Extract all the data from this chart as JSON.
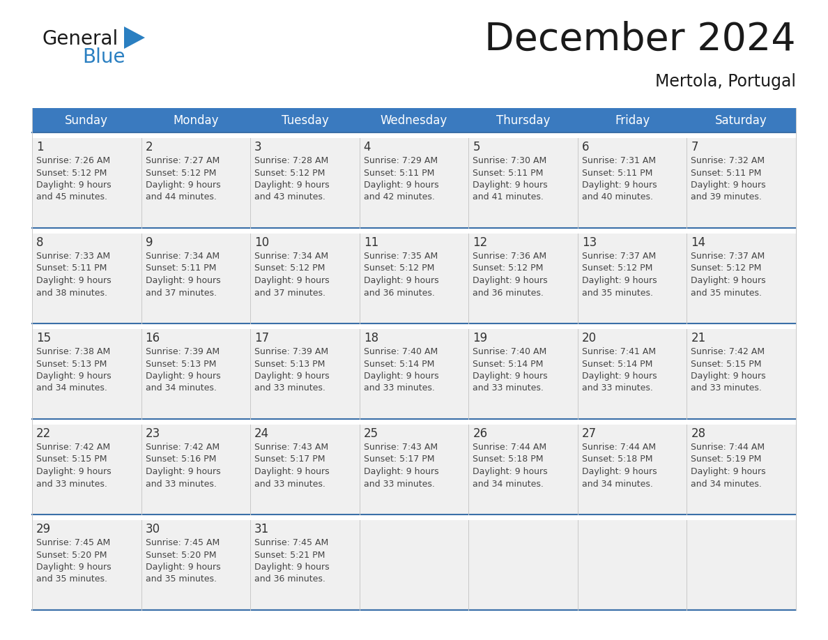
{
  "title": "December 2024",
  "subtitle": "Mertola, Portugal",
  "header_bg": "#3a7abf",
  "header_text_color": "#ffffff",
  "cell_bg": "#f0f0f0",
  "cell_bg_empty": "#f0f0f0",
  "day_number_color": "#333333",
  "info_text_color": "#444444",
  "divider_color": "#3a6fa8",
  "row_gap_color": "#ffffff",
  "days_of_week": [
    "Sunday",
    "Monday",
    "Tuesday",
    "Wednesday",
    "Thursday",
    "Friday",
    "Saturday"
  ],
  "weeks": [
    [
      {
        "day": 1,
        "sunrise": "7:26 AM",
        "sunset": "5:12 PM",
        "daylight_line1": "Daylight: 9 hours",
        "daylight_line2": "and 45 minutes."
      },
      {
        "day": 2,
        "sunrise": "7:27 AM",
        "sunset": "5:12 PM",
        "daylight_line1": "Daylight: 9 hours",
        "daylight_line2": "and 44 minutes."
      },
      {
        "day": 3,
        "sunrise": "7:28 AM",
        "sunset": "5:12 PM",
        "daylight_line1": "Daylight: 9 hours",
        "daylight_line2": "and 43 minutes."
      },
      {
        "day": 4,
        "sunrise": "7:29 AM",
        "sunset": "5:11 PM",
        "daylight_line1": "Daylight: 9 hours",
        "daylight_line2": "and 42 minutes."
      },
      {
        "day": 5,
        "sunrise": "7:30 AM",
        "sunset": "5:11 PM",
        "daylight_line1": "Daylight: 9 hours",
        "daylight_line2": "and 41 minutes."
      },
      {
        "day": 6,
        "sunrise": "7:31 AM",
        "sunset": "5:11 PM",
        "daylight_line1": "Daylight: 9 hours",
        "daylight_line2": "and 40 minutes."
      },
      {
        "day": 7,
        "sunrise": "7:32 AM",
        "sunset": "5:11 PM",
        "daylight_line1": "Daylight: 9 hours",
        "daylight_line2": "and 39 minutes."
      }
    ],
    [
      {
        "day": 8,
        "sunrise": "7:33 AM",
        "sunset": "5:11 PM",
        "daylight_line1": "Daylight: 9 hours",
        "daylight_line2": "and 38 minutes."
      },
      {
        "day": 9,
        "sunrise": "7:34 AM",
        "sunset": "5:11 PM",
        "daylight_line1": "Daylight: 9 hours",
        "daylight_line2": "and 37 minutes."
      },
      {
        "day": 10,
        "sunrise": "7:34 AM",
        "sunset": "5:12 PM",
        "daylight_line1": "Daylight: 9 hours",
        "daylight_line2": "and 37 minutes."
      },
      {
        "day": 11,
        "sunrise": "7:35 AM",
        "sunset": "5:12 PM",
        "daylight_line1": "Daylight: 9 hours",
        "daylight_line2": "and 36 minutes."
      },
      {
        "day": 12,
        "sunrise": "7:36 AM",
        "sunset": "5:12 PM",
        "daylight_line1": "Daylight: 9 hours",
        "daylight_line2": "and 36 minutes."
      },
      {
        "day": 13,
        "sunrise": "7:37 AM",
        "sunset": "5:12 PM",
        "daylight_line1": "Daylight: 9 hours",
        "daylight_line2": "and 35 minutes."
      },
      {
        "day": 14,
        "sunrise": "7:37 AM",
        "sunset": "5:12 PM",
        "daylight_line1": "Daylight: 9 hours",
        "daylight_line2": "and 35 minutes."
      }
    ],
    [
      {
        "day": 15,
        "sunrise": "7:38 AM",
        "sunset": "5:13 PM",
        "daylight_line1": "Daylight: 9 hours",
        "daylight_line2": "and 34 minutes."
      },
      {
        "day": 16,
        "sunrise": "7:39 AM",
        "sunset": "5:13 PM",
        "daylight_line1": "Daylight: 9 hours",
        "daylight_line2": "and 34 minutes."
      },
      {
        "day": 17,
        "sunrise": "7:39 AM",
        "sunset": "5:13 PM",
        "daylight_line1": "Daylight: 9 hours",
        "daylight_line2": "and 33 minutes."
      },
      {
        "day": 18,
        "sunrise": "7:40 AM",
        "sunset": "5:14 PM",
        "daylight_line1": "Daylight: 9 hours",
        "daylight_line2": "and 33 minutes."
      },
      {
        "day": 19,
        "sunrise": "7:40 AM",
        "sunset": "5:14 PM",
        "daylight_line1": "Daylight: 9 hours",
        "daylight_line2": "and 33 minutes."
      },
      {
        "day": 20,
        "sunrise": "7:41 AM",
        "sunset": "5:14 PM",
        "daylight_line1": "Daylight: 9 hours",
        "daylight_line2": "and 33 minutes."
      },
      {
        "day": 21,
        "sunrise": "7:42 AM",
        "sunset": "5:15 PM",
        "daylight_line1": "Daylight: 9 hours",
        "daylight_line2": "and 33 minutes."
      }
    ],
    [
      {
        "day": 22,
        "sunrise": "7:42 AM",
        "sunset": "5:15 PM",
        "daylight_line1": "Daylight: 9 hours",
        "daylight_line2": "and 33 minutes."
      },
      {
        "day": 23,
        "sunrise": "7:42 AM",
        "sunset": "5:16 PM",
        "daylight_line1": "Daylight: 9 hours",
        "daylight_line2": "and 33 minutes."
      },
      {
        "day": 24,
        "sunrise": "7:43 AM",
        "sunset": "5:17 PM",
        "daylight_line1": "Daylight: 9 hours",
        "daylight_line2": "and 33 minutes."
      },
      {
        "day": 25,
        "sunrise": "7:43 AM",
        "sunset": "5:17 PM",
        "daylight_line1": "Daylight: 9 hours",
        "daylight_line2": "and 33 minutes."
      },
      {
        "day": 26,
        "sunrise": "7:44 AM",
        "sunset": "5:18 PM",
        "daylight_line1": "Daylight: 9 hours",
        "daylight_line2": "and 34 minutes."
      },
      {
        "day": 27,
        "sunrise": "7:44 AM",
        "sunset": "5:18 PM",
        "daylight_line1": "Daylight: 9 hours",
        "daylight_line2": "and 34 minutes."
      },
      {
        "day": 28,
        "sunrise": "7:44 AM",
        "sunset": "5:19 PM",
        "daylight_line1": "Daylight: 9 hours",
        "daylight_line2": "and 34 minutes."
      }
    ],
    [
      {
        "day": 29,
        "sunrise": "7:45 AM",
        "sunset": "5:20 PM",
        "daylight_line1": "Daylight: 9 hours",
        "daylight_line2": "and 35 minutes."
      },
      {
        "day": 30,
        "sunrise": "7:45 AM",
        "sunset": "5:20 PM",
        "daylight_line1": "Daylight: 9 hours",
        "daylight_line2": "and 35 minutes."
      },
      {
        "day": 31,
        "sunrise": "7:45 AM",
        "sunset": "5:21 PM",
        "daylight_line1": "Daylight: 9 hours",
        "daylight_line2": "and 36 minutes."
      },
      null,
      null,
      null,
      null
    ]
  ],
  "logo_general_color": "#1a1a1a",
  "logo_blue_color": "#2a7fc1",
  "logo_triangle_color": "#2a7fc1",
  "title_color": "#1a1a1a",
  "subtitle_color": "#1a1a1a",
  "fig_width": 11.88,
  "fig_height": 9.18,
  "dpi": 100
}
